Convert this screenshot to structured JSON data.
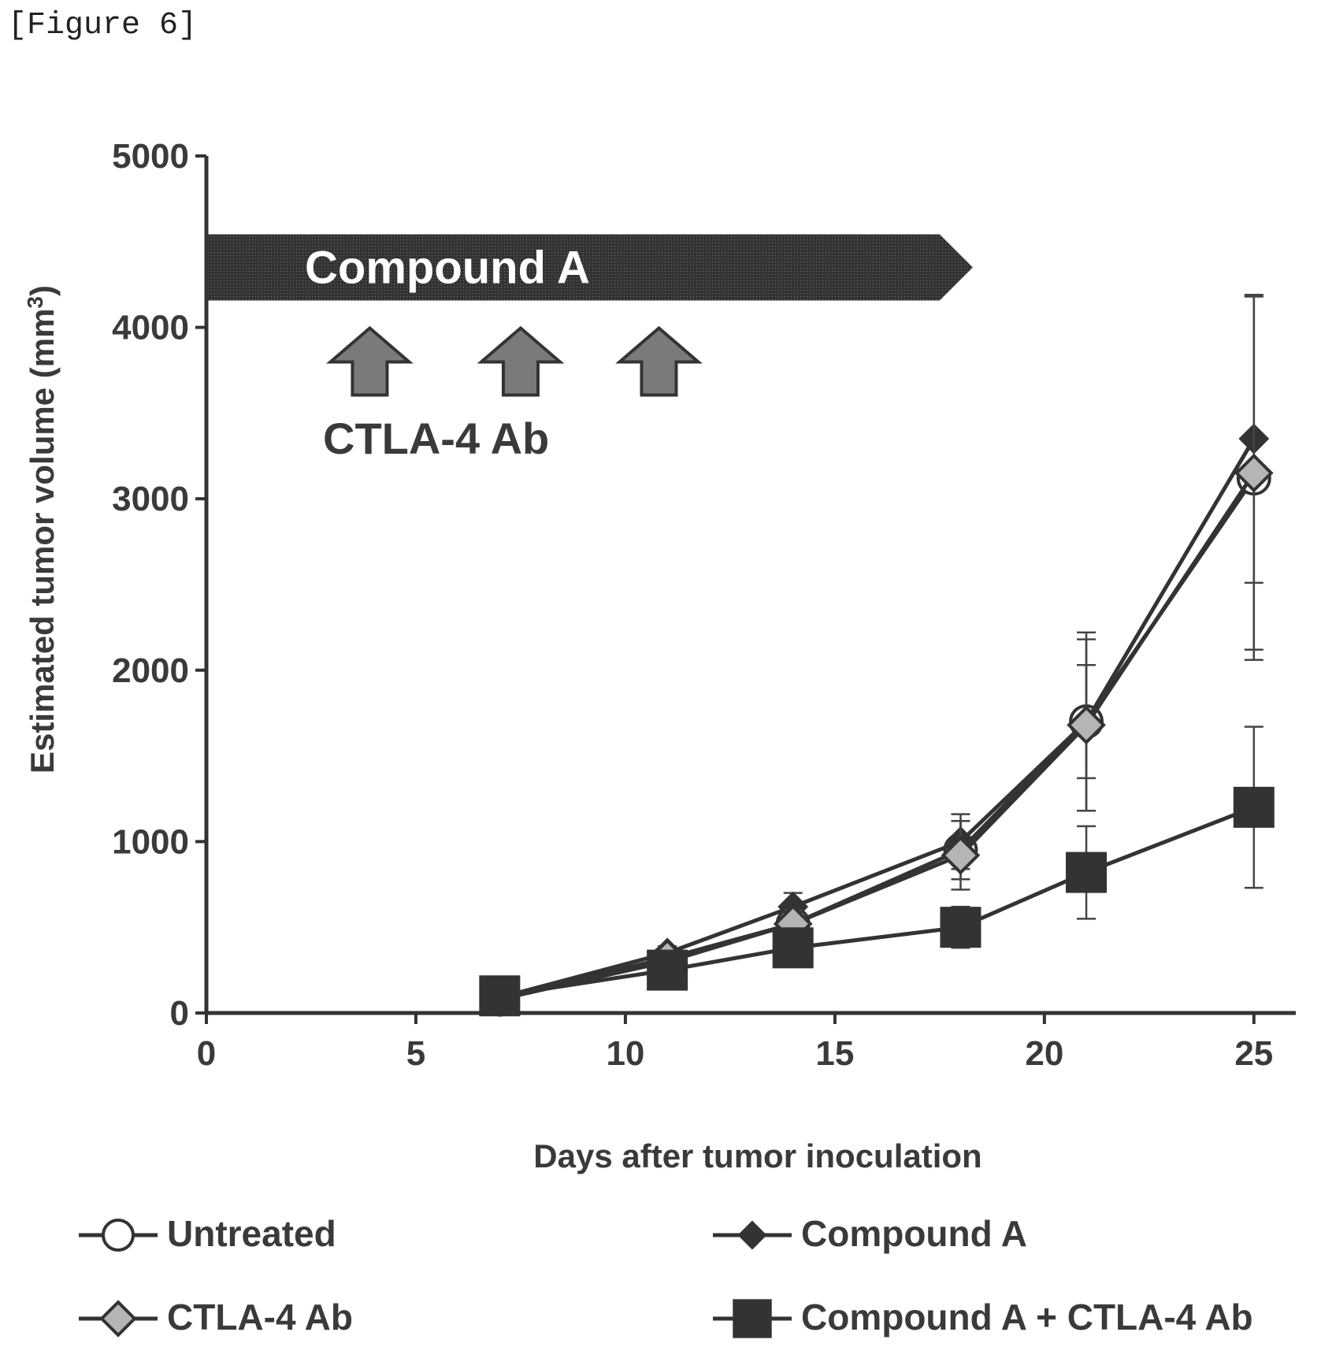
{
  "figure_label": "[Figure 6]",
  "chart_data": {
    "type": "line",
    "xlabel": "Days after tumor inoculation",
    "ylabel": "Estimated tumor volume (mm",
    "ylabel_sup": "3",
    "ylabel_close": ")",
    "xlim": [
      0,
      26
    ],
    "ylim": [
      0,
      5000
    ],
    "x_ticks": [
      0,
      5,
      10,
      15,
      20,
      25
    ],
    "y_ticks": [
      0,
      1000,
      2000,
      3000,
      4000,
      5000
    ],
    "banner": {
      "label": "Compound A",
      "x_start": 0,
      "x_end": 17.5,
      "y_center": 4350
    },
    "dosing": {
      "label": "CTLA-4 Ab",
      "days": [
        3.9,
        7.5,
        10.8
      ],
      "y": 3780
    },
    "series": [
      {
        "name": "Untreated",
        "marker": "circle-open",
        "x": [
          7,
          11,
          14,
          18,
          21,
          25
        ],
        "y": [
          80,
          300,
          520,
          950,
          1700,
          3120
        ],
        "err": [
          20,
          40,
          80,
          170,
          330,
          1060
        ]
      },
      {
        "name": "Compound A",
        "marker": "diamond-filled",
        "x": [
          7,
          11,
          14,
          18,
          21,
          25
        ],
        "y": [
          90,
          350,
          620,
          1000,
          1700,
          3350
        ],
        "err": [
          20,
          40,
          80,
          160,
          520,
          840
        ]
      },
      {
        "name": "CTLA-4 Ab",
        "marker": "diamond-light",
        "x": [
          7,
          11,
          14,
          18,
          21,
          25
        ],
        "y": [
          90,
          320,
          520,
          920,
          1680,
          3150
        ],
        "err": [
          20,
          40,
          80,
          200,
          500,
          1030
        ]
      },
      {
        "name": "Compound A + CTLA-4 Ab",
        "marker": "square-filled",
        "x": [
          7,
          11,
          14,
          18,
          21,
          25
        ],
        "y": [
          100,
          250,
          380,
          500,
          820,
          1200
        ],
        "err": [
          20,
          40,
          70,
          120,
          270,
          470
        ]
      }
    ]
  }
}
